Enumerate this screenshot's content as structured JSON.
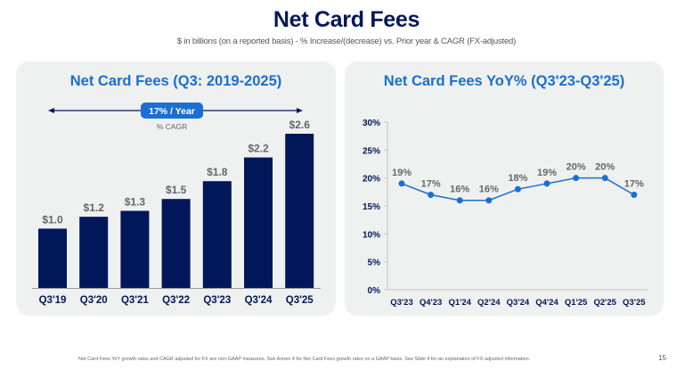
{
  "header": {
    "title": "Net Card Fees",
    "subtitle": "$ in billions (on a reported basis) - % Increase/(decrease) vs. Prior year & CAGR (FX-adjusted)"
  },
  "colors": {
    "navy": "#00175a",
    "blue": "#1a6fd0",
    "label_gray": "#666666",
    "card_bg": "#eff0f0"
  },
  "chart_data": [
    {
      "type": "bar",
      "title": "Net Card Fees (Q3: 2019-2025)",
      "categories": [
        "Q3'19",
        "Q3'20",
        "Q3'21",
        "Q3'22",
        "Q3'23",
        "Q3'24",
        "Q3'25"
      ],
      "values": [
        1.0,
        1.2,
        1.3,
        1.5,
        1.8,
        2.2,
        2.6
      ],
      "data_labels": [
        "$1.0",
        "$1.2",
        "$1.3",
        "$1.5",
        "$1.8",
        "$2.2",
        "$2.6"
      ],
      "xlabel": "",
      "ylabel": "",
      "ylim": [
        0,
        2.6
      ],
      "grid": false,
      "annotation": {
        "cagr_label": "17% / Year",
        "cagr_caption": "% CAGR"
      }
    },
    {
      "type": "line",
      "title": "Net Card Fees YoY% (Q3'23-Q3'25)",
      "categories": [
        "Q3'23",
        "Q4'23",
        "Q1'24",
        "Q2'24",
        "Q3'24",
        "Q4'24",
        "Q1'25",
        "Q2'25",
        "Q3'25"
      ],
      "values": [
        19,
        17,
        16,
        16,
        18,
        19,
        20,
        20,
        17
      ],
      "data_labels": [
        "19%",
        "17%",
        "16%",
        "16%",
        "18%",
        "19%",
        "20%",
        "20%",
        "17%"
      ],
      "yticks": [
        0,
        5,
        10,
        15,
        20,
        25,
        30
      ],
      "ytick_labels": [
        "0%",
        "5%",
        "10%",
        "15%",
        "20%",
        "25%",
        "30%"
      ],
      "ylim": [
        0,
        30
      ],
      "xlabel": "",
      "ylabel": "",
      "grid": false
    }
  ],
  "footer": {
    "note": "Net Card Fees YoY growth rates and CAGR adjusted for FX are non-GAAP measures. See Annex 4 for Net Card Fees growth rates on a GAAP basis. See Slide 4 for an explanation of FX-adjusted information.",
    "page_number": "15"
  }
}
